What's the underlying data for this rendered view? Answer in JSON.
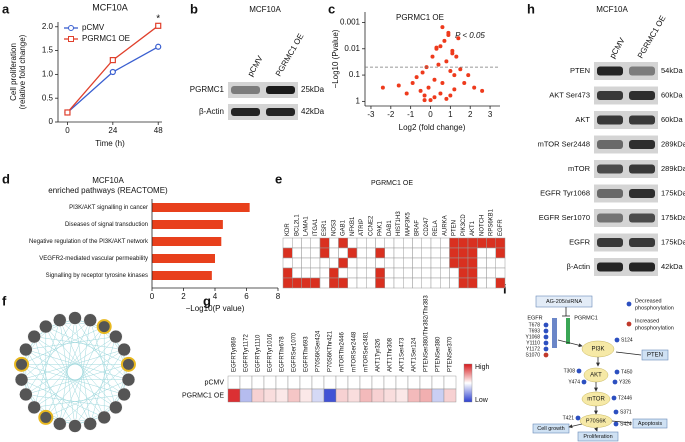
{
  "panel_labels": [
    "a",
    "b",
    "c",
    "h",
    "d",
    "e",
    "f",
    "g",
    "i"
  ],
  "chart_data": [
    {
      "type": "line",
      "title": "MCF10A",
      "y_label": [
        "Cell proliferation",
        "(relative fold change)"
      ],
      "x_label": "Time (h)",
      "x": [
        0,
        24,
        48
      ],
      "xlim": [
        -5,
        50
      ],
      "xticks": [
        0,
        24,
        48
      ],
      "ylim": [
        0,
        2.1
      ],
      "yticks": [
        0,
        0.5,
        {
          "value": 1,
          "label": "1.0"
        },
        1.5,
        {
          "value": 2,
          "label": "2.0"
        }
      ],
      "legend": "upper left",
      "annotation": "*",
      "series": [
        {
          "name": "pCMV",
          "color": "#3a5fd0",
          "marker": "circle",
          "values": [
            0.2,
            1.05,
            1.58
          ]
        },
        {
          "name": "PGRMC1 OE",
          "color": "#e0402c",
          "marker": "square",
          "values": [
            0.2,
            1.3,
            2.02
          ]
        }
      ]
    },
    {
      "type": "scatter",
      "title": "PGRMC1 OE",
      "y_label": "−Log10 (Pvalue)",
      "x_label": "Log2 (fold change)",
      "log_y": true,
      "ylim": [
        1.5,
        0.0004
      ],
      "yticks": [
        0.001,
        0.01,
        0.1,
        1
      ],
      "xlim": [
        -3.3,
        3.5
      ],
      "xticks": [
        -3,
        -2,
        -1,
        0,
        1,
        2,
        3
      ],
      "threshold": 0.05,
      "annotation": "P < 0.05",
      "color": "#ee3a1c",
      "x": [
        -2.4,
        -1.6,
        -1.2,
        -0.9,
        -0.7,
        -0.5,
        -0.4,
        -0.3,
        -0.2,
        -0.1,
        0,
        0.1,
        0.2,
        0.3,
        0.4,
        0.5,
        0.6,
        0.7,
        0.8,
        0.9,
        1.0,
        1.1,
        1.2,
        1.3,
        1.4,
        1.5,
        1.7,
        1.9,
        2.2,
        2.6,
        -0.3,
        0.2,
        0.5,
        0.8,
        1.0,
        1.2,
        0.6,
        0.3,
        0.9,
        1.1
      ],
      "y": [
        0.3,
        0.25,
        0.5,
        0.2,
        0.12,
        0.4,
        0.08,
        0.6,
        0.05,
        0.3,
        0.9,
        0.02,
        0.15,
        0.01,
        0.04,
        0.008,
        0.2,
        0.005,
        0.03,
        0.003,
        0.07,
        0.012,
        0.1,
        0.02,
        0.004,
        0.06,
        0.2,
        0.1,
        0.3,
        0.4,
        0.9,
        0.7,
        0.5,
        0.8,
        0.6,
        0.35,
        0.0015,
        0.009,
        0.0025,
        0.015
      ]
    },
    {
      "type": "barh",
      "title": [
        "MCF10A",
        "enriched pathways (REACTOME)"
      ],
      "x_label": "−Log10(P value)",
      "categories": [
        "PI3K/AKT signalling in cancer",
        "Diseases of signal transduction",
        "Negative regulation of the PI3K/AKT network",
        "VEGFR2-mediated vascular permeability",
        "Signalling by receptor tyrosine kinases"
      ],
      "values": [
        6.2,
        4.5,
        4.4,
        4.0,
        3.8
      ],
      "xlim": [
        0,
        8
      ],
      "xticks": [
        0,
        2,
        4,
        6,
        8
      ],
      "color": "#e8401c"
    },
    {
      "type": "binary-heatmap",
      "title": "PGRMC1 OE",
      "color": "#d93020",
      "columns": [
        "KDR",
        "BCL2L1",
        "LAMA1",
        "ITGA1",
        "ESR1",
        "NOS3",
        "GAB1",
        "NFKB1",
        "ATRIP",
        "CCNE2",
        "PAK1",
        "DAB1",
        "HIST1H3",
        "MAP3K5",
        "BRAF",
        "CD247",
        "RELA",
        "AURKA",
        "PTEN",
        "PIK3CD",
        "AKT1",
        "NOTCH",
        "RPS6KB1",
        "EGFR"
      ],
      "values": [
        [
          0,
          0,
          0,
          0,
          1,
          0,
          1,
          0,
          0,
          0,
          0,
          0,
          0,
          0,
          0,
          0,
          0,
          0,
          1,
          1,
          1,
          1,
          1,
          1
        ],
        [
          1,
          0,
          0,
          0,
          1,
          0,
          0,
          1,
          0,
          0,
          1,
          0,
          0,
          0,
          0,
          0,
          0,
          0,
          1,
          1,
          1,
          0,
          0,
          1
        ],
        [
          0,
          0,
          0,
          0,
          0,
          0,
          1,
          0,
          0,
          0,
          0,
          0,
          0,
          0,
          0,
          0,
          0,
          0,
          1,
          1,
          1,
          0,
          0,
          0
        ],
        [
          1,
          0,
          0,
          0,
          0,
          1,
          0,
          0,
          0,
          0,
          1,
          0,
          0,
          0,
          0,
          0,
          0,
          0,
          0,
          1,
          1,
          0,
          0,
          0
        ],
        [
          1,
          1,
          1,
          1,
          0,
          1,
          1,
          0,
          0,
          0,
          1,
          0,
          0,
          0,
          0,
          0,
          0,
          0,
          0,
          1,
          1,
          0,
          0,
          1
        ]
      ]
    },
    {
      "type": "heatmap",
      "rows": [
        "pCMV",
        "PGRMC1 OE"
      ],
      "columns": [
        "EGFRTyr869",
        "EGFRTyr1172",
        "EGFRTyr1110",
        "EGFRTyr1016",
        "EGFRThr678",
        "EGFRSer1070",
        "EGFRThr693",
        "P70S6KSer424",
        "P70S6KThr421",
        "mTORThr2446",
        "mTORSer2448",
        "mTORSer2481",
        "AKT1Tyr326",
        "AKT1Thr308",
        "AKT1Ser473",
        "AKT1Ser124",
        "PTENSer380/Thr382/Thr383",
        "PTENSer380",
        "PTENSer370"
      ],
      "values": [
        [
          0,
          0,
          0,
          0,
          0,
          0,
          0,
          0,
          0,
          0,
          0,
          0,
          0,
          0,
          0,
          0,
          0,
          0,
          0
        ],
        [
          0.9,
          -0.35,
          0.2,
          0.15,
          0.1,
          0.25,
          0.1,
          -0.2,
          -0.9,
          0.2,
          0.15,
          0.3,
          0.2,
          0.15,
          0.1,
          0.3,
          0.35,
          -0.25,
          0.2
        ]
      ],
      "clim": [
        -1,
        1
      ],
      "colormap": [
        "#2c3fd0",
        "#ffffff",
        "#d7191c"
      ],
      "colorbar_labels": [
        "High",
        "Low"
      ]
    }
  ],
  "blots": [
    {
      "title": "MCF10A",
      "lanes": [
        "pCMV",
        "PGRMC1 OE"
      ],
      "rows": [
        {
          "protein": "PGRMC1",
          "size": "25kDa"
        },
        {
          "protein": "β-Actin",
          "size": "42kDa"
        }
      ]
    },
    {
      "title": "MCF10A",
      "lanes": [
        "pCMV",
        "PGRMC1 OE"
      ],
      "rows": [
        {
          "protein": "PTEN",
          "size": "54kDa"
        },
        {
          "protein": "AKT Ser473",
          "size": "60kDa"
        },
        {
          "protein": "AKT",
          "size": "60kDa"
        },
        {
          "protein": "mTOR Ser2448",
          "size": "289kDa"
        },
        {
          "protein": "mTOR",
          "size": "289kDa"
        },
        {
          "protein": "EGFR Tyr1068",
          "size": "175kDa"
        },
        {
          "protein": "EGFR Ser1070",
          "size": "175kDa"
        },
        {
          "protein": "EGFR",
          "size": "175kDa"
        },
        {
          "protein": "β-Actin",
          "size": "42kDa"
        }
      ]
    }
  ],
  "pathway": {
    "inhibitor": "AG-205/siRNA",
    "pgrmc1": "PGRMC1",
    "egfr": "EGFR",
    "egfr_sites": [
      "T678",
      "T693",
      "Y1068",
      "Y1110",
      "Y1172",
      "S1070"
    ],
    "pi3k": "PI3K",
    "pten": "PTEN",
    "pi3k_site": "S124",
    "akt": "AKT",
    "akt_sites": [
      "T308",
      "T450",
      "Y474",
      "Y326"
    ],
    "mtor": "mTOR",
    "mtor_site": "T2446",
    "p70": "P70S6K",
    "p70_sites": [
      "T421",
      "S371",
      "S424"
    ],
    "outcomes": [
      "Cell growth",
      "Proliferation",
      "Apoptosis"
    ],
    "legend": [
      [
        "Decreased",
        "phosphorylation"
      ],
      [
        "Increased",
        "phosphorylation"
      ]
    ]
  }
}
